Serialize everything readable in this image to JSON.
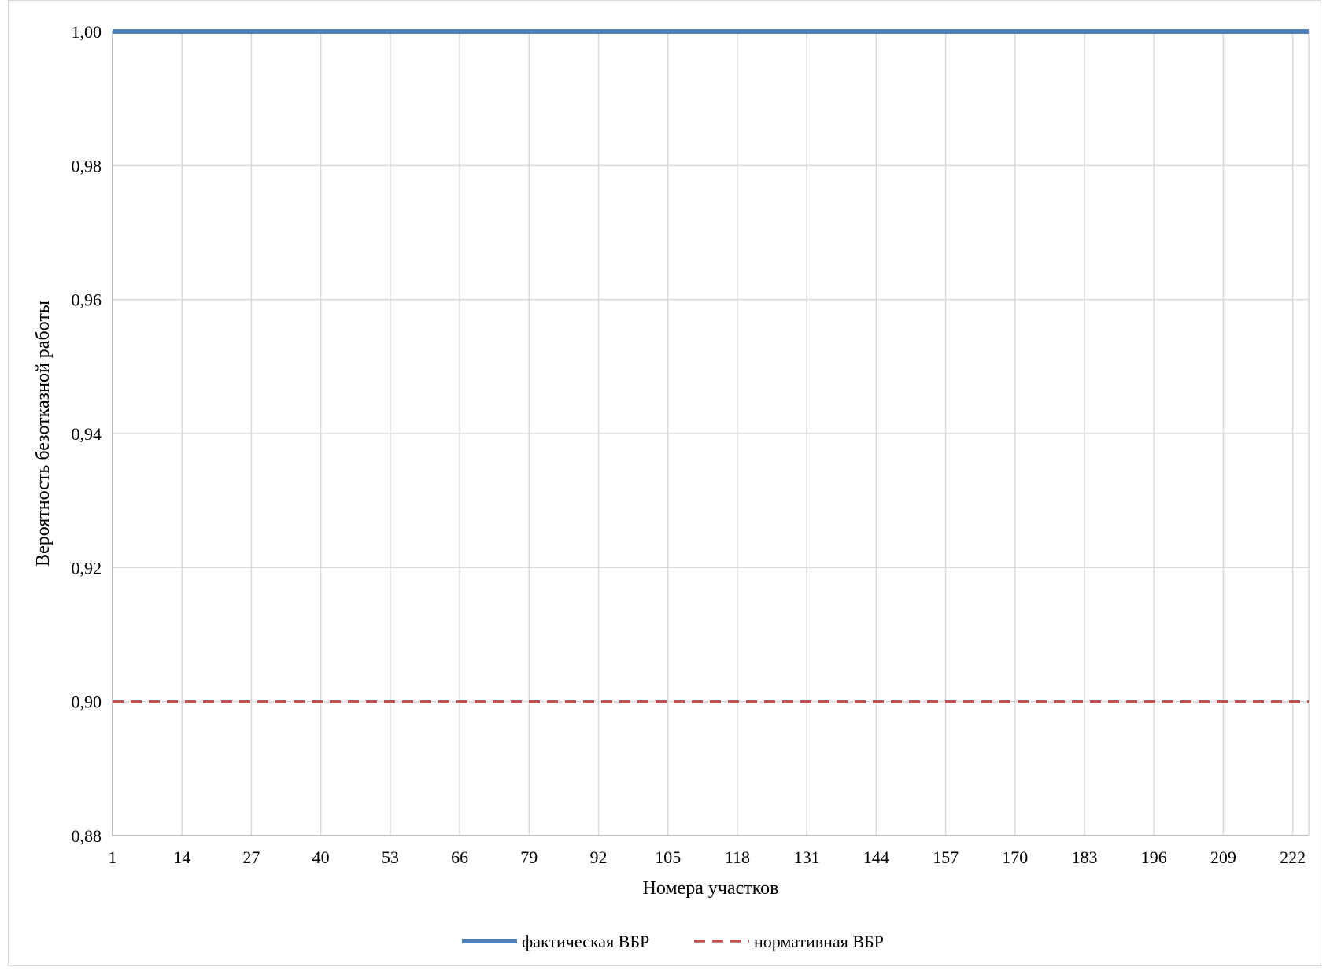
{
  "chart_data": {
    "type": "line",
    "title": "",
    "xlabel": "Номера участков",
    "ylabel": "Вероятность безотказной работы",
    "ylim": [
      0.88,
      1.0
    ],
    "xlim": [
      1,
      225
    ],
    "x_ticks": [
      1,
      14,
      27,
      40,
      53,
      66,
      79,
      92,
      105,
      118,
      131,
      144,
      157,
      170,
      183,
      196,
      209,
      222
    ],
    "y_ticks": [
      "0,88",
      "0,90",
      "0,92",
      "0,94",
      "0,96",
      "0,98",
      "1,00"
    ],
    "y_tick_values": [
      0.88,
      0.9,
      0.92,
      0.94,
      0.96,
      0.98,
      1.0
    ],
    "grid": true,
    "legend_position": "bottom",
    "series": [
      {
        "name": "фактическая ВБР",
        "x": [
          1,
          225
        ],
        "values": [
          1.0,
          1.0
        ],
        "color": "#4F81BD",
        "style": "solid"
      },
      {
        "name": "нормативная ВБР",
        "x": [
          1,
          225
        ],
        "values": [
          0.9,
          0.9
        ],
        "color": "#C0504D",
        "style": "dashed"
      }
    ]
  }
}
